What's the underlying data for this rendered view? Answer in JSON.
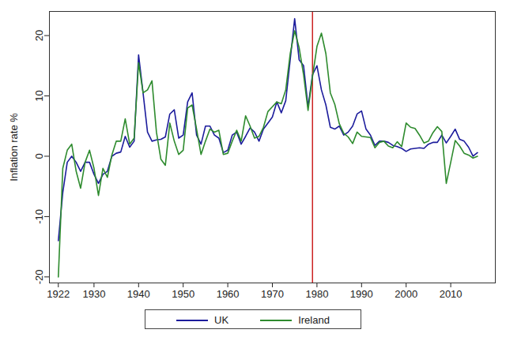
{
  "chart_data": {
    "type": "line",
    "y_label": "Inflation rate %",
    "x": [
      1922,
      1923,
      1924,
      1925,
      1926,
      1927,
      1928,
      1929,
      1930,
      1931,
      1932,
      1933,
      1934,
      1935,
      1936,
      1937,
      1938,
      1939,
      1940,
      1941,
      1942,
      1943,
      1944,
      1945,
      1946,
      1947,
      1948,
      1949,
      1950,
      1951,
      1952,
      1953,
      1954,
      1955,
      1956,
      1957,
      1958,
      1959,
      1960,
      1961,
      1962,
      1963,
      1964,
      1965,
      1966,
      1967,
      1968,
      1969,
      1970,
      1971,
      1972,
      1973,
      1974,
      1975,
      1976,
      1977,
      1978,
      1979,
      1980,
      1981,
      1982,
      1983,
      1984,
      1985,
      1986,
      1987,
      1988,
      1989,
      1990,
      1991,
      1992,
      1993,
      1994,
      1995,
      1996,
      1997,
      1998,
      1999,
      2000,
      2001,
      2002,
      2003,
      2004,
      2005,
      2006,
      2007,
      2008,
      2009,
      2010,
      2011,
      2012,
      2013,
      2014,
      2015,
      2016
    ],
    "series": [
      {
        "name": "UK",
        "color": "#1c1c9c",
        "values": [
          -14,
          -6,
          -1,
          0,
          -1,
          -2.5,
          -1,
          -1,
          -3,
          -4.5,
          -3,
          -2.5,
          0,
          0.5,
          0.7,
          3.3,
          1.5,
          2.5,
          16.8,
          10.5,
          4,
          2.5,
          2.7,
          2.8,
          3.2,
          7,
          7.7,
          3,
          3.5,
          9,
          10.5,
          3.5,
          2,
          5,
          5,
          3.5,
          3,
          0.6,
          1,
          3.5,
          4,
          2,
          3.3,
          4.7,
          4,
          2.5,
          4.5,
          5.5,
          6.5,
          9,
          7.2,
          9.2,
          16,
          22.8,
          16,
          15,
          8.2,
          13.5,
          15,
          11,
          8.5,
          4.8,
          4.5,
          5,
          3.5,
          4,
          5,
          7,
          7.5,
          4.5,
          3.5,
          1.8,
          2.5,
          2.5,
          2.3,
          1.8,
          1.6,
          1.3,
          0.8,
          1.2,
          1.3,
          1.4,
          1.3,
          2,
          2.3,
          2.3,
          3.5,
          2.2,
          3.3,
          4.5,
          2.8,
          2.5,
          1.5,
          0,
          0.6
        ]
      },
      {
        "name": "Ireland",
        "color": "#2e8b2e",
        "values": [
          -20,
          -2,
          1,
          2,
          -2.5,
          -5.3,
          -1,
          1,
          -2,
          -6.5,
          -2,
          -3.5,
          0.2,
          2.5,
          2.5,
          6.2,
          2,
          3,
          15.5,
          10.5,
          11,
          12.5,
          4,
          -0.5,
          -1.5,
          5.5,
          2.5,
          0.3,
          1,
          8,
          8.5,
          4.5,
          0.3,
          2.5,
          4.5,
          4,
          4.3,
          0.3,
          0.5,
          2.5,
          4.3,
          2.5,
          6.7,
          5,
          3,
          3.3,
          4.8,
          7.4,
          8.2,
          9,
          8.7,
          11,
          17,
          20.8,
          18,
          13.5,
          7.6,
          13.2,
          18.2,
          20.4,
          17,
          10.5,
          8.6,
          5.4,
          3.8,
          3.2,
          2.1,
          4,
          3.3,
          3.2,
          3.1,
          1.4,
          2.3,
          2.5,
          1.7,
          1.4,
          2.4,
          1.6,
          5.5,
          4.8,
          4.6,
          3.5,
          2.2,
          2.5,
          3.9,
          4.9,
          4.1,
          -4.5,
          -1,
          2.6,
          1.7,
          0.5,
          0.2,
          -0.3,
          0
        ]
      }
    ],
    "vline": {
      "x": 1979,
      "color": "#cc2222"
    },
    "xlim": [
      1920,
      2020
    ],
    "ylim": [
      -21,
      24
    ],
    "xticks": [
      1922,
      1930,
      1940,
      1950,
      1960,
      1970,
      1980,
      1990,
      2000,
      2010
    ],
    "yticks": [
      -20,
      -10,
      0,
      10,
      20
    ],
    "grid": false,
    "legend": "bottom"
  }
}
